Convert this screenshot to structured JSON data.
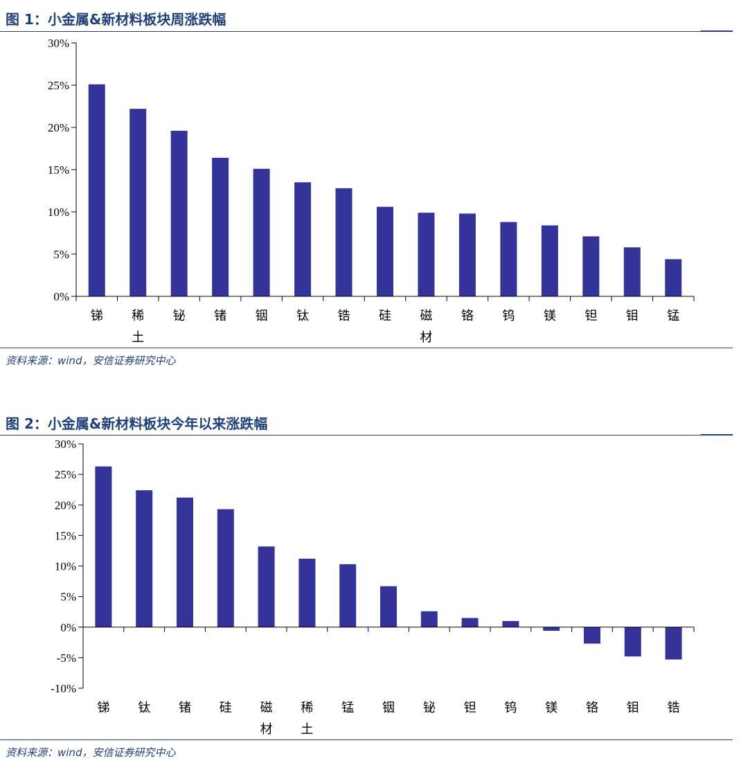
{
  "figures": [
    {
      "title": "图 1：小金属&新材料板块周涨跌幅",
      "source": "资料来源：wind，安信证券研究中心",
      "chart_data": {
        "type": "bar",
        "categories": [
          "锑",
          "稀土",
          "铋",
          "锗",
          "铟",
          "钛",
          "锆",
          "硅",
          "磁材",
          "铬",
          "钨",
          "镁",
          "钽",
          "钼",
          "锰"
        ],
        "values": [
          25.1,
          22.2,
          19.6,
          16.4,
          15.1,
          13.5,
          12.8,
          10.6,
          9.9,
          9.8,
          8.8,
          8.4,
          7.1,
          5.8,
          4.4
        ],
        "yticks": [
          "30%",
          "25%",
          "20%",
          "15%",
          "10%",
          "5%",
          "0%"
        ],
        "ylim": [
          0,
          30
        ],
        "bar_color": "#333399"
      }
    },
    {
      "title": "图 2：小金属&新材料板块今年以来涨跌幅",
      "source": "资料来源：wind，安信证券研究中心",
      "chart_data": {
        "type": "bar",
        "categories": [
          "锑",
          "钛",
          "锗",
          "硅",
          "磁材",
          "稀土",
          "锰",
          "铟",
          "铋",
          "钽",
          "钨",
          "镁",
          "铬",
          "钼",
          "锆"
        ],
        "values": [
          26.3,
          22.4,
          21.2,
          19.3,
          13.2,
          11.2,
          10.3,
          6.7,
          2.6,
          1.5,
          1.0,
          -0.6,
          -2.7,
          -4.8,
          -5.3
        ],
        "yticks": [
          "30%",
          "25%",
          "20%",
          "15%",
          "10%",
          "5%",
          "0%",
          "-5%",
          "-10%"
        ],
        "ylim": [
          -10,
          30
        ],
        "bar_color": "#333399"
      }
    }
  ]
}
